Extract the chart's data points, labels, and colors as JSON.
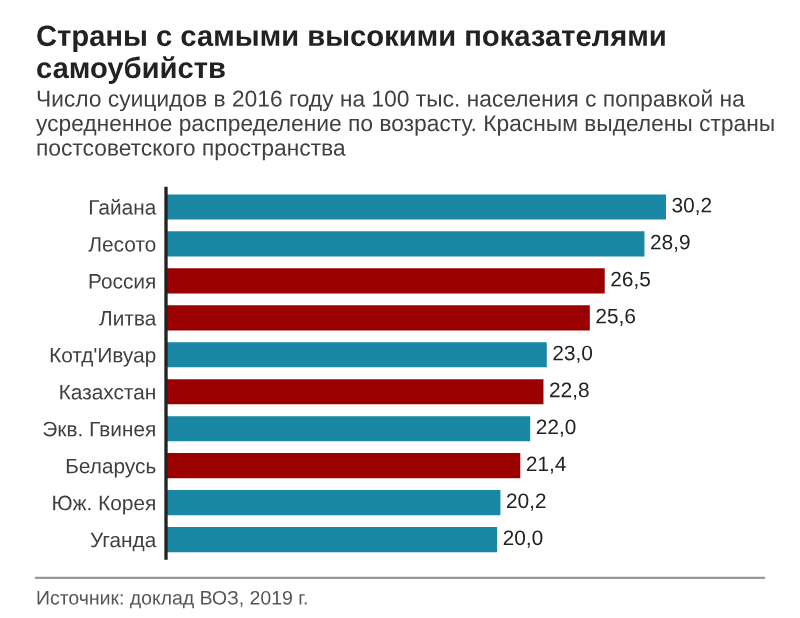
{
  "chart_data": {
    "type": "bar",
    "orientation": "horizontal",
    "title": "Страны с самыми высокими показателями самоубийств",
    "subtitle": "Число суицидов в 2016 году на 100 тыс. населения с поправкой на усредненное распределение по возрасту. Красным выделены страны постсоветского пространства",
    "categories": [
      "Гайана",
      "Лесото",
      "Россия",
      "Литва",
      "Котд'Ивуар",
      "Казахстан",
      "Экв. Гвинея",
      "Беларусь",
      "Юж. Корея",
      "Уганда"
    ],
    "values": [
      30.2,
      28.9,
      26.5,
      25.6,
      23.0,
      22.8,
      22.0,
      21.4,
      20.2,
      20.0
    ],
    "colors": [
      "#1a87a4",
      "#1a87a4",
      "#9b0000",
      "#9b0000",
      "#1a87a4",
      "#9b0000",
      "#1a87a4",
      "#9b0000",
      "#1a87a4",
      "#1a87a4"
    ],
    "value_labels": [
      "30,2",
      "28,9",
      "26,5",
      "25,6",
      "23,0",
      "22,8",
      "22,0",
      "21,4",
      "20,2",
      "20,0"
    ],
    "xlim": [
      0,
      36
    ],
    "tick_labels": "y",
    "grid": false,
    "legend": false,
    "annotations": [
      "Источник: доклад ВОЗ, 2019 г."
    ]
  }
}
